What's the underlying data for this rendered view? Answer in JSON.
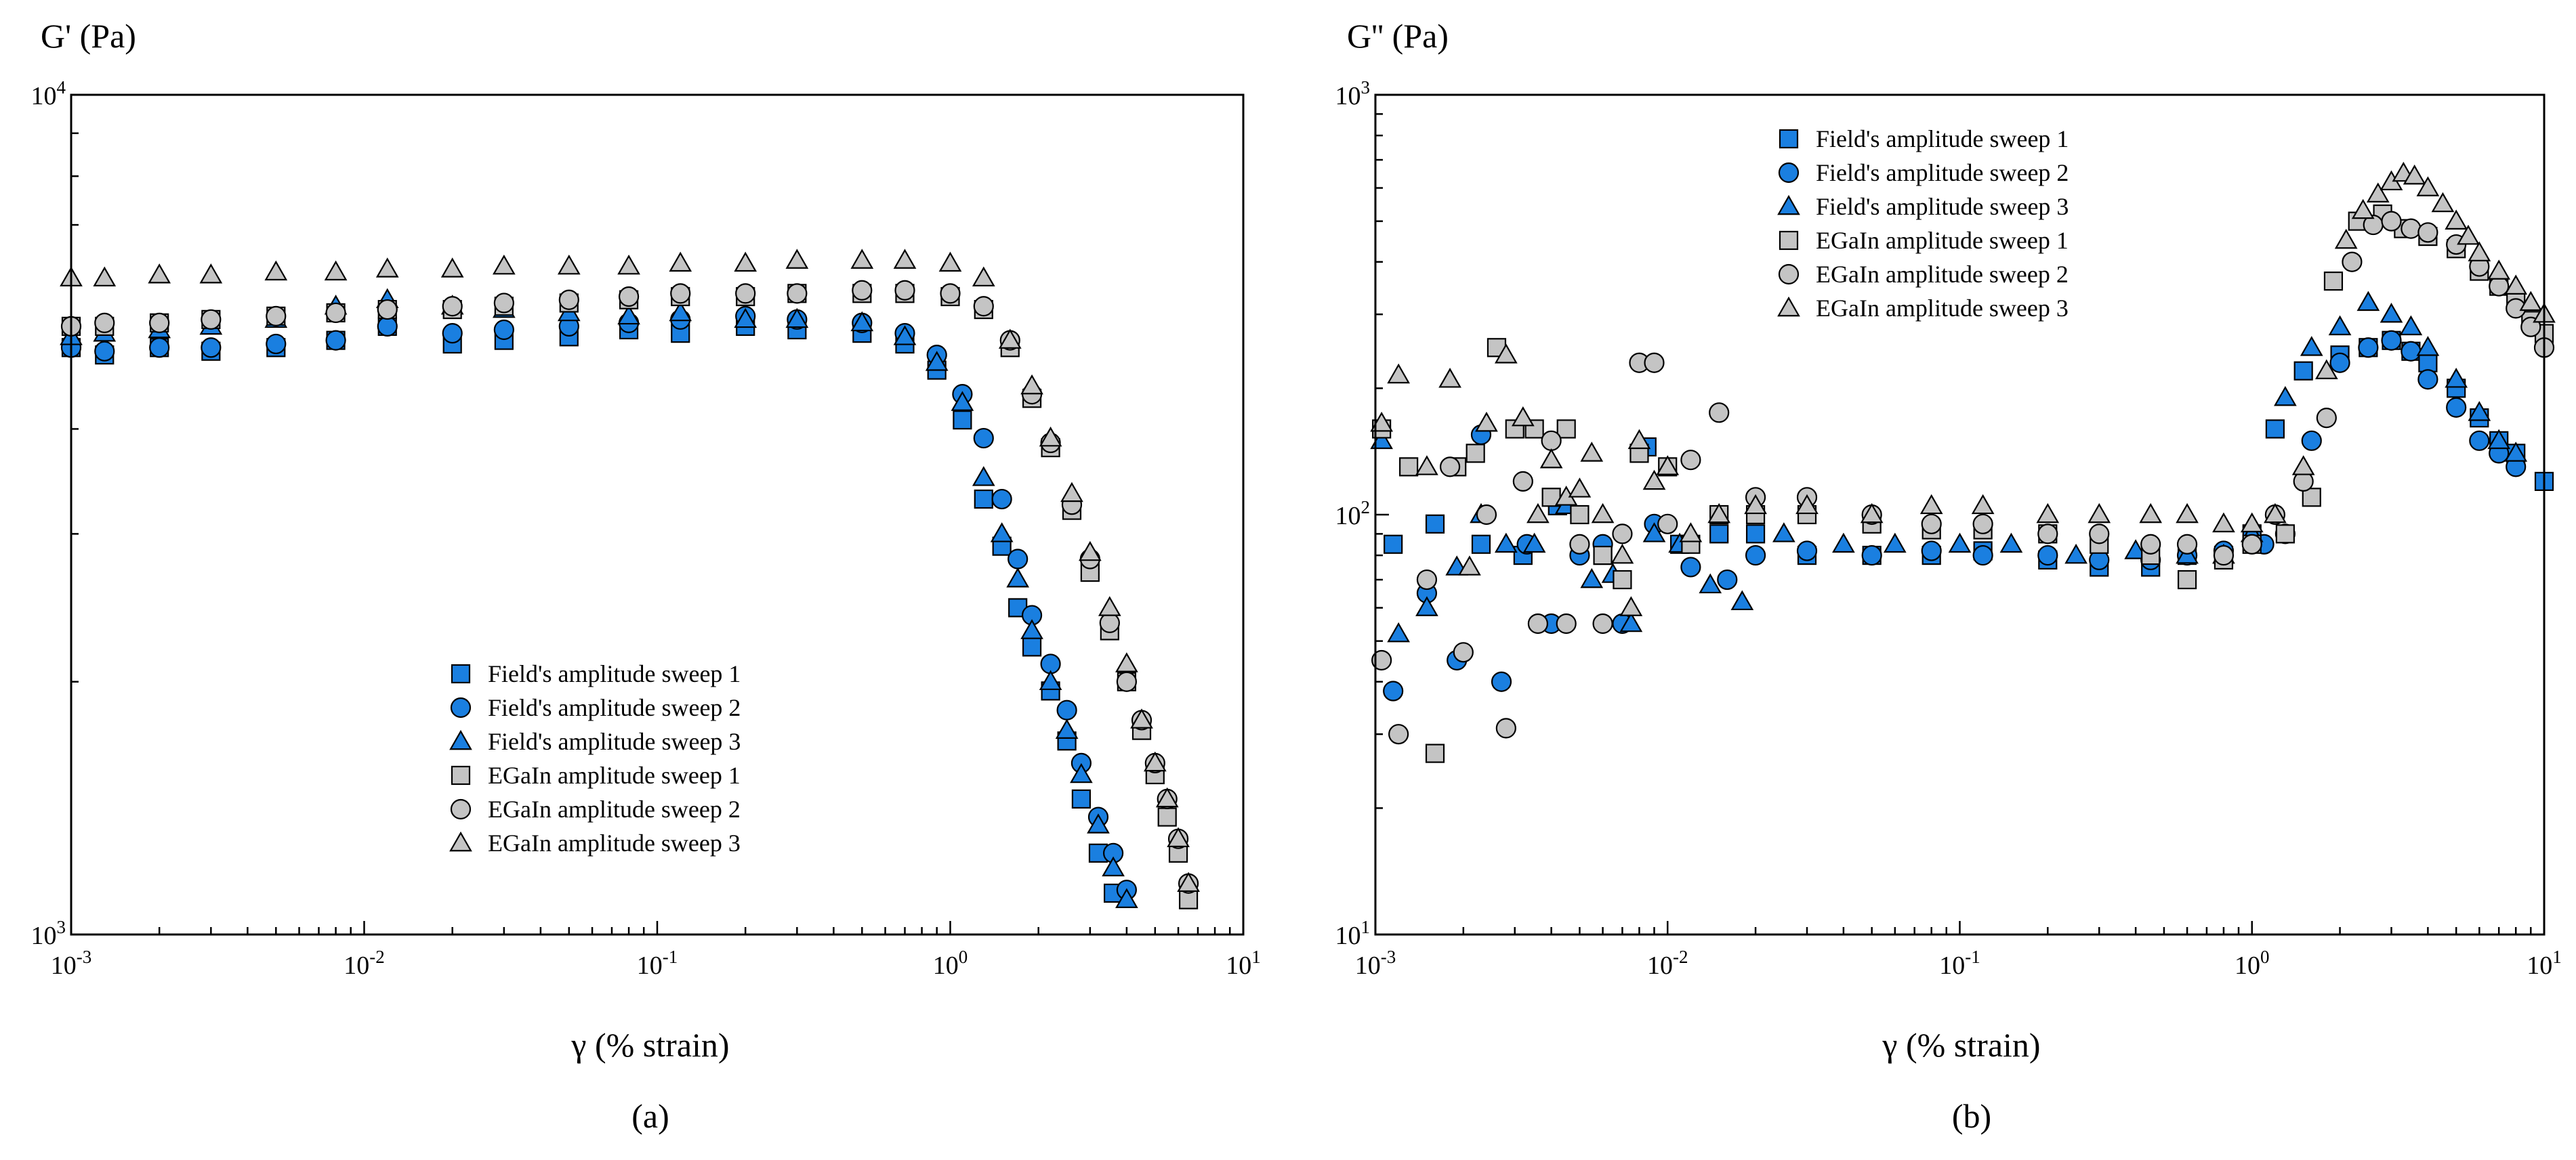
{
  "colors": {
    "blue": "#1a7fe0",
    "gray": "#c4c4c4",
    "stroke": "#000000",
    "axis": "#000000"
  },
  "chart_data": [
    {
      "type": "scatter",
      "panel_label": "(a)",
      "ylabel": "G' (Pa)",
      "xlabel": "γ (% strain)",
      "xscale": "log",
      "yscale": "log",
      "xlim": [
        0.001,
        10
      ],
      "ylim": [
        1000,
        10000
      ],
      "x_ticks": [
        {
          "base": "10",
          "exp": "-3"
        },
        {
          "base": "10",
          "exp": "-2"
        },
        {
          "base": "10",
          "exp": "-1"
        },
        {
          "base": "10",
          "exp": "0"
        },
        {
          "base": "10",
          "exp": "1"
        }
      ],
      "y_ticks": [
        {
          "base": "10",
          "exp": "3"
        },
        {
          "base": "10",
          "exp": "4"
        }
      ],
      "grid": false,
      "legend_position": "bottom-center",
      "series": [
        {
          "name": "Field's amplitude sweep 1",
          "marker": "square",
          "color": "blue",
          "x": [
            0.001,
            0.0013,
            0.002,
            0.003,
            0.005,
            0.008,
            0.012,
            0.02,
            0.03,
            0.05,
            0.08,
            0.12,
            0.2,
            0.3,
            0.5,
            0.7,
            0.9,
            1.1,
            1.3,
            1.5,
            1.7,
            1.9,
            2.2,
            2.5,
            2.8,
            3.2,
            3.6
          ],
          "y": [
            5000,
            4900,
            5000,
            4950,
            5000,
            5100,
            5300,
            5050,
            5100,
            5150,
            5250,
            5200,
            5300,
            5250,
            5200,
            5050,
            4700,
            4100,
            3300,
            2900,
            2450,
            2200,
            1950,
            1700,
            1450,
            1250,
            1120
          ]
        },
        {
          "name": "Field's amplitude sweep 2",
          "marker": "circle",
          "color": "blue",
          "x": [
            0.001,
            0.0013,
            0.002,
            0.003,
            0.005,
            0.008,
            0.012,
            0.02,
            0.03,
            0.05,
            0.08,
            0.12,
            0.2,
            0.3,
            0.5,
            0.7,
            0.9,
            1.1,
            1.3,
            1.5,
            1.7,
            1.9,
            2.2,
            2.5,
            2.8,
            3.2,
            3.6,
            4.0
          ],
          "y": [
            5000,
            4950,
            5000,
            5000,
            5050,
            5100,
            5300,
            5200,
            5250,
            5300,
            5350,
            5400,
            5450,
            5400,
            5350,
            5200,
            4900,
            4400,
            3900,
            3300,
            2800,
            2400,
            2100,
            1850,
            1600,
            1380,
            1250,
            1130
          ]
        },
        {
          "name": "Field's amplitude sweep 3",
          "marker": "triangle",
          "color": "blue",
          "x": [
            0.001,
            0.0013,
            0.002,
            0.003,
            0.005,
            0.008,
            0.012,
            0.02,
            0.03,
            0.05,
            0.08,
            0.12,
            0.2,
            0.3,
            0.5,
            0.7,
            0.9,
            1.1,
            1.3,
            1.5,
            1.7,
            1.9,
            2.2,
            2.5,
            2.8,
            3.2,
            3.6,
            4.0
          ],
          "y": [
            5150,
            5200,
            5250,
            5300,
            5400,
            5600,
            5700,
            5600,
            5550,
            5500,
            5450,
            5500,
            5400,
            5400,
            5350,
            5150,
            4800,
            4300,
            3500,
            3000,
            2650,
            2300,
            2000,
            1750,
            1550,
            1350,
            1200,
            1100
          ]
        },
        {
          "name": "EGaIn amplitude sweep 1",
          "marker": "square",
          "color": "gray",
          "x": [
            0.001,
            0.0013,
            0.002,
            0.003,
            0.005,
            0.008,
            0.012,
            0.02,
            0.03,
            0.05,
            0.08,
            0.12,
            0.2,
            0.3,
            0.5,
            0.7,
            1.0,
            1.3,
            1.6,
            1.9,
            2.2,
            2.6,
            3.0,
            3.5,
            4.0,
            4.5,
            5.0,
            5.5,
            6.0,
            6.5
          ],
          "y": [
            5300,
            5300,
            5350,
            5400,
            5450,
            5500,
            5550,
            5550,
            5600,
            5650,
            5700,
            5750,
            5750,
            5800,
            5800,
            5800,
            5750,
            5550,
            5000,
            4350,
            3800,
            3200,
            2700,
            2300,
            2000,
            1750,
            1550,
            1380,
            1250,
            1100
          ]
        },
        {
          "name": "EGaIn amplitude sweep 2",
          "marker": "circle",
          "color": "gray",
          "x": [
            0.001,
            0.0013,
            0.002,
            0.003,
            0.005,
            0.008,
            0.012,
            0.02,
            0.03,
            0.05,
            0.08,
            0.12,
            0.2,
            0.3,
            0.5,
            0.7,
            1.0,
            1.3,
            1.6,
            1.9,
            2.2,
            2.6,
            3.0,
            3.5,
            4.0,
            4.5,
            5.0,
            5.5,
            6.0,
            6.5
          ],
          "y": [
            5300,
            5350,
            5350,
            5400,
            5450,
            5500,
            5550,
            5600,
            5650,
            5700,
            5750,
            5800,
            5800,
            5800,
            5850,
            5850,
            5800,
            5600,
            5100,
            4400,
            3850,
            3250,
            2800,
            2350,
            2000,
            1800,
            1600,
            1450,
            1300,
            1150
          ]
        },
        {
          "name": "EGaIn amplitude sweep 3",
          "marker": "triangle",
          "color": "gray",
          "x": [
            0.001,
            0.0013,
            0.002,
            0.003,
            0.005,
            0.008,
            0.012,
            0.02,
            0.03,
            0.05,
            0.08,
            0.12,
            0.2,
            0.3,
            0.5,
            0.7,
            1.0,
            1.3,
            1.6,
            1.9,
            2.2,
            2.6,
            3.0,
            3.5,
            4.0,
            4.5,
            5.0,
            5.5,
            6.0,
            6.5
          ],
          "y": [
            6050,
            6050,
            6100,
            6100,
            6150,
            6150,
            6200,
            6200,
            6250,
            6250,
            6250,
            6300,
            6300,
            6350,
            6350,
            6350,
            6300,
            6050,
            5100,
            4500,
            3900,
            3350,
            2850,
            2450,
            2100,
            1800,
            1600,
            1450,
            1300,
            1150
          ]
        }
      ]
    },
    {
      "type": "scatter",
      "panel_label": "(b)",
      "ylabel": "G'' (Pa)",
      "xlabel": "γ (% strain)",
      "xscale": "log",
      "yscale": "log",
      "xlim": [
        0.001,
        10
      ],
      "ylim": [
        10,
        1000
      ],
      "x_ticks": [
        {
          "base": "10",
          "exp": "-3"
        },
        {
          "base": "10",
          "exp": "-2"
        },
        {
          "base": "10",
          "exp": "-1"
        },
        {
          "base": "10",
          "exp": "0"
        },
        {
          "base": "10",
          "exp": "1"
        }
      ],
      "y_ticks": [
        {
          "base": "10",
          "exp": "1"
        },
        {
          "base": "10",
          "exp": "2"
        },
        {
          "base": "10",
          "exp": "3"
        }
      ],
      "grid": false,
      "legend_position": "top-center",
      "series": [
        {
          "name": "Field's amplitude sweep 1",
          "marker": "square",
          "color": "blue",
          "x": [
            0.00115,
            0.0016,
            0.0023,
            0.0032,
            0.0042,
            0.006,
            0.0085,
            0.011,
            0.015,
            0.02,
            0.03,
            0.05,
            0.08,
            0.12,
            0.2,
            0.3,
            0.45,
            0.6,
            0.8,
            1.0,
            1.2,
            1.5,
            2.0,
            2.5,
            3.0,
            3.5,
            4.0,
            5.0,
            6.0,
            7.0,
            8.0,
            10.0
          ],
          "y": [
            85,
            95,
            85,
            80,
            105,
            80,
            145,
            85,
            90,
            90,
            80,
            80,
            80,
            82,
            78,
            75,
            75,
            80,
            80,
            90,
            160,
            220,
            240,
            250,
            260,
            245,
            230,
            200,
            170,
            150,
            140,
            120
          ]
        },
        {
          "name": "Field's amplitude sweep 2",
          "marker": "circle",
          "color": "blue",
          "x": [
            0.00115,
            0.0015,
            0.0019,
            0.0023,
            0.0027,
            0.0033,
            0.004,
            0.005,
            0.006,
            0.007,
            0.009,
            0.012,
            0.016,
            0.02,
            0.03,
            0.05,
            0.08,
            0.12,
            0.2,
            0.3,
            0.45,
            0.6,
            0.8,
            1.1,
            1.3,
            1.6,
            2.0,
            2.5,
            3.0,
            3.5,
            4.0,
            5.0,
            6.0,
            7.0,
            8.0
          ],
          "y": [
            38,
            65,
            45,
            155,
            40,
            85,
            55,
            80,
            85,
            55,
            95,
            75,
            70,
            80,
            82,
            80,
            82,
            80,
            80,
            78,
            78,
            80,
            82,
            85,
            90,
            150,
            230,
            250,
            260,
            245,
            210,
            180,
            150,
            140,
            130
          ]
        },
        {
          "name": "Field's amplitude sweep 3",
          "marker": "triangle",
          "color": "blue",
          "x": [
            0.00105,
            0.0012,
            0.0015,
            0.0019,
            0.0023,
            0.0028,
            0.0035,
            0.0045,
            0.0055,
            0.0065,
            0.0075,
            0.009,
            0.011,
            0.014,
            0.018,
            0.025,
            0.04,
            0.06,
            0.1,
            0.15,
            0.25,
            0.4,
            0.6,
            0.8,
            1.0,
            1.3,
            1.6,
            2.0,
            2.5,
            3.0,
            3.5,
            4.0,
            5.0,
            6.0,
            7.0,
            8.0
          ],
          "y": [
            150,
            52,
            60,
            75,
            100,
            85,
            85,
            105,
            70,
            72,
            55,
            90,
            85,
            68,
            62,
            90,
            85,
            85,
            85,
            85,
            80,
            82,
            80,
            80,
            90,
            190,
            250,
            280,
            320,
            300,
            280,
            250,
            210,
            175,
            150,
            140
          ]
        },
        {
          "name": "EGaIn amplitude sweep 1",
          "marker": "square",
          "color": "gray",
          "x": [
            0.00105,
            0.0013,
            0.0016,
            0.0019,
            0.0022,
            0.0026,
            0.003,
            0.0035,
            0.004,
            0.0045,
            0.005,
            0.006,
            0.007,
            0.008,
            0.01,
            0.012,
            0.015,
            0.02,
            0.03,
            0.05,
            0.08,
            0.12,
            0.2,
            0.3,
            0.45,
            0.6,
            0.8,
            1.0,
            1.3,
            1.6,
            1.9,
            2.3,
            2.8,
            3.3,
            4.0,
            5.0,
            6.0,
            7.0,
            8.0,
            9.0,
            10.0
          ],
          "y": [
            160,
            130,
            27,
            130,
            140,
            250,
            160,
            160,
            110,
            160,
            100,
            80,
            70,
            140,
            130,
            85,
            100,
            100,
            100,
            95,
            92,
            92,
            90,
            85,
            80,
            70,
            78,
            85,
            90,
            110,
            360,
            500,
            520,
            480,
            460,
            430,
            380,
            350,
            320,
            290,
            270
          ]
        },
        {
          "name": "EGaIn amplitude sweep 2",
          "marker": "circle",
          "color": "gray",
          "x": [
            0.00105,
            0.0012,
            0.0015,
            0.0018,
            0.002,
            0.0024,
            0.0028,
            0.0032,
            0.0036,
            0.004,
            0.0045,
            0.005,
            0.006,
            0.007,
            0.008,
            0.009,
            0.01,
            0.012,
            0.015,
            0.02,
            0.03,
            0.05,
            0.08,
            0.12,
            0.2,
            0.3,
            0.45,
            0.6,
            0.8,
            1.0,
            1.2,
            1.5,
            1.8,
            2.2,
            2.6,
            3.0,
            3.5,
            4.0,
            5.0,
            6.0,
            7.0,
            8.0,
            9.0,
            10.0
          ],
          "y": [
            45,
            30,
            70,
            130,
            47,
            100,
            31,
            120,
            55,
            150,
            55,
            85,
            55,
            90,
            230,
            230,
            95,
            135,
            175,
            110,
            110,
            100,
            95,
            95,
            90,
            90,
            85,
            85,
            80,
            85,
            100,
            120,
            170,
            400,
            490,
            500,
            480,
            470,
            440,
            390,
            350,
            310,
            280,
            250
          ]
        },
        {
          "name": "EGaIn amplitude sweep 3",
          "marker": "triangle",
          "color": "gray",
          "x": [
            0.00105,
            0.0012,
            0.0015,
            0.0018,
            0.0021,
            0.0024,
            0.0028,
            0.0032,
            0.0036,
            0.004,
            0.0045,
            0.005,
            0.0055,
            0.006,
            0.007,
            0.0075,
            0.008,
            0.009,
            0.01,
            0.012,
            0.015,
            0.02,
            0.03,
            0.05,
            0.08,
            0.12,
            0.2,
            0.3,
            0.45,
            0.6,
            0.8,
            1.0,
            1.2,
            1.5,
            1.8,
            2.1,
            2.4,
            2.7,
            3.0,
            3.3,
            3.6,
            4.0,
            4.5,
            5.0,
            5.5,
            6.0,
            7.0,
            8.0,
            9.0,
            10.0
          ],
          "y": [
            165,
            215,
            130,
            210,
            75,
            165,
            240,
            170,
            100,
            135,
            110,
            115,
            140,
            100,
            80,
            60,
            150,
            120,
            130,
            90,
            100,
            105,
            105,
            100,
            105,
            105,
            100,
            100,
            100,
            100,
            95,
            95,
            100,
            130,
            220,
            450,
            530,
            580,
            620,
            650,
            640,
            600,
            550,
            500,
            460,
            420,
            380,
            350,
            320,
            300
          ]
        }
      ]
    }
  ]
}
